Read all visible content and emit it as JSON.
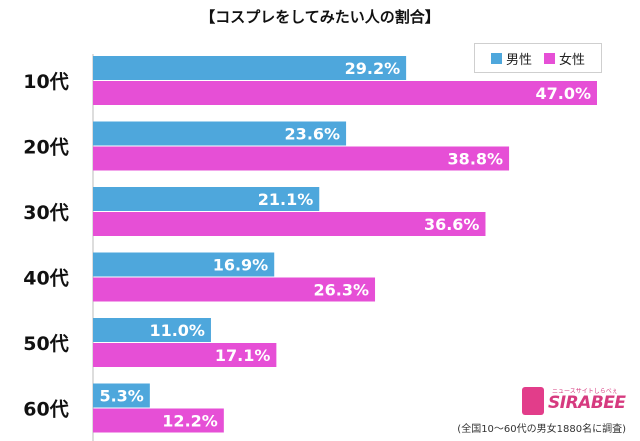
{
  "chart_data": {
    "type": "bar",
    "orientation": "horizontal",
    "title": "【コスプレをしてみたい人の割合】",
    "categories": [
      "10代",
      "20代",
      "30代",
      "40代",
      "50代",
      "60代"
    ],
    "series": [
      {
        "name": "男性",
        "color": "#4ea7dc",
        "values": [
          29.2,
          23.6,
          21.1,
          16.9,
          11.0,
          5.3
        ]
      },
      {
        "name": "女性",
        "color": "#e64fd6",
        "values": [
          47.0,
          38.8,
          36.6,
          26.3,
          17.1,
          12.2
        ]
      }
    ],
    "data_labels": {
      "男性": [
        "29.2%",
        "23.6%",
        "21.1%",
        "16.9%",
        "11.0%",
        "5.3%"
      ],
      "女性": [
        "47.0%",
        "38.8%",
        "36.6%",
        "26.3%",
        "17.1%",
        "12.2%"
      ]
    },
    "xlim": [
      0,
      47.0
    ],
    "legend": "top-right",
    "grid": false
  },
  "footnote": "(全国10〜60代の男女1880名に調査)",
  "logo": {
    "text": "SIRABEE",
    "subtext": "ニュースサイトしらべぇ",
    "color": "#d63a7f"
  }
}
